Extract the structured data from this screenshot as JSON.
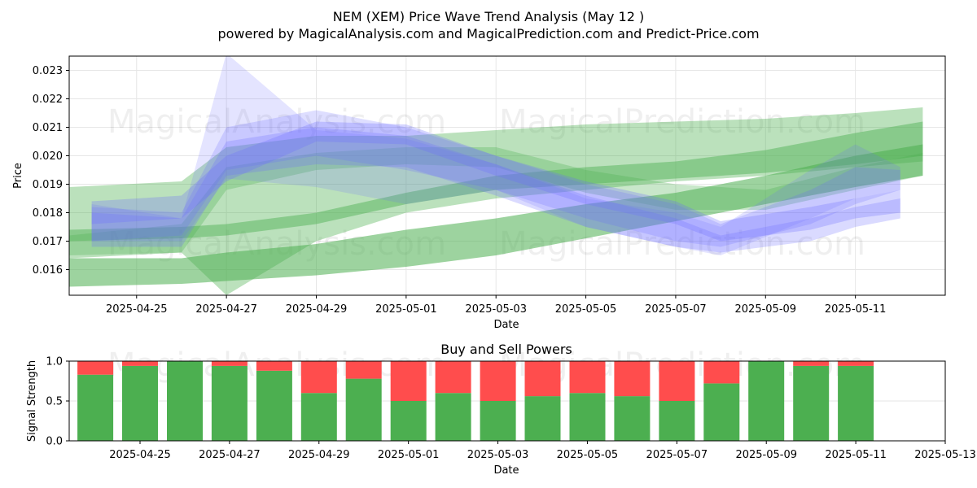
{
  "title": "NEM (XEM) Price Wave Trend Analysis (May 12 )",
  "subtitle": "powered by MagicalAnalysis.com and MagicalPrediction.com and Predict-Price.com",
  "watermarks": [
    "MagicalAnalysis.com",
    "MagicalPrediction.com"
  ],
  "colors": {
    "buy": "#4caf50",
    "sell": "#ff4d4d",
    "blue_band": "#6b6bff",
    "green_band": "#4caf50",
    "grid": "#e6e6e6"
  },
  "chart_data": [
    {
      "type": "area",
      "name": "price-wave",
      "xlabel": "Date",
      "ylabel": "Price",
      "x_range": [
        "2025-04-23T12:00",
        "2025-05-13T00:00"
      ],
      "ylim": [
        0.0151,
        0.0235
      ],
      "x_ticks": [
        "2025-04-25",
        "2025-04-27",
        "2025-04-29",
        "2025-05-01",
        "2025-05-03",
        "2025-05-05",
        "2025-05-07",
        "2025-05-09",
        "2025-05-11"
      ],
      "y_ticks": [
        "0.016",
        "0.017",
        "0.018",
        "0.019",
        "0.020",
        "0.021",
        "0.022",
        "0.023"
      ],
      "blue_bands": [
        {
          "alpha": 0.18,
          "x": [
            "2025-04-24",
            "2025-04-26",
            "2025-04-27",
            "2025-04-29",
            "2025-05-01",
            "2025-05-03",
            "2025-05-05",
            "2025-05-07",
            "2025-05-08",
            "2025-05-10",
            "2025-05-11",
            "2025-05-12"
          ],
          "upper": [
            0.0183,
            0.0178,
            0.0236,
            0.0209,
            0.0206,
            0.0197,
            0.0185,
            0.018,
            0.0175,
            0.0195,
            0.0204,
            0.0196
          ],
          "lower": [
            0.017,
            0.017,
            0.0192,
            0.0189,
            0.0183,
            0.0188,
            0.0175,
            0.0168,
            0.0165,
            0.0178,
            0.0185,
            0.0188
          ]
        },
        {
          "alpha": 0.22,
          "x": [
            "2025-04-24",
            "2025-04-26",
            "2025-04-27",
            "2025-04-29",
            "2025-05-01",
            "2025-05-03",
            "2025-05-05",
            "2025-05-07",
            "2025-05-08",
            "2025-05-10",
            "2025-05-11",
            "2025-05-12"
          ],
          "upper": [
            0.0182,
            0.018,
            0.021,
            0.0216,
            0.021,
            0.02,
            0.019,
            0.0183,
            0.0176,
            0.0188,
            0.0196,
            0.0195
          ],
          "lower": [
            0.017,
            0.0172,
            0.0195,
            0.02,
            0.0195,
            0.0188,
            0.0178,
            0.017,
            0.0168,
            0.0176,
            0.0183,
            0.0188
          ]
        },
        {
          "alpha": 0.28,
          "x": [
            "2025-04-24",
            "2025-04-26",
            "2025-04-27",
            "2025-04-29",
            "2025-05-01",
            "2025-05-03",
            "2025-05-05",
            "2025-05-07",
            "2025-05-08",
            "2025-05-10",
            "2025-05-11",
            "2025-05-12"
          ],
          "upper": [
            0.0184,
            0.0186,
            0.02,
            0.0212,
            0.0211,
            0.02,
            0.0191,
            0.0184,
            0.0177,
            0.0182,
            0.0185,
            0.0188
          ],
          "lower": [
            0.0176,
            0.0178,
            0.0191,
            0.0205,
            0.0204,
            0.0193,
            0.0183,
            0.0176,
            0.017,
            0.0174,
            0.0178,
            0.018
          ]
        },
        {
          "alpha": 0.25,
          "x": [
            "2025-04-24",
            "2025-04-26",
            "2025-04-27",
            "2025-04-29",
            "2025-05-01",
            "2025-05-03",
            "2025-05-05",
            "2025-05-07",
            "2025-05-08",
            "2025-05-10",
            "2025-05-11",
            "2025-05-12"
          ],
          "upper": [
            0.018,
            0.0178,
            0.0205,
            0.021,
            0.0207,
            0.0197,
            0.0186,
            0.0178,
            0.0172,
            0.0178,
            0.0182,
            0.0185
          ],
          "lower": [
            0.0168,
            0.0168,
            0.0193,
            0.0197,
            0.0196,
            0.0186,
            0.0175,
            0.0168,
            0.0166,
            0.017,
            0.0175,
            0.0178
          ]
        }
      ],
      "green_bands": [
        {
          "alpha": 0.38,
          "x": [
            "2025-04-23T12:00",
            "2025-04-26",
            "2025-04-27",
            "2025-04-29",
            "2025-05-01",
            "2025-05-03",
            "2025-05-05",
            "2025-05-07",
            "2025-05-09",
            "2025-05-11",
            "2025-05-12T12:00"
          ],
          "upper": [
            0.0189,
            0.0191,
            0.0203,
            0.0207,
            0.0207,
            0.0209,
            0.0211,
            0.0212,
            0.0213,
            0.0215,
            0.0217
          ],
          "lower": [
            0.0164,
            0.0166,
            0.0151,
            0.017,
            0.018,
            0.0185,
            0.0188,
            0.0191,
            0.0193,
            0.0196,
            0.0198
          ]
        },
        {
          "alpha": 0.45,
          "x": [
            "2025-04-23T12:00",
            "2025-04-26",
            "2025-04-27",
            "2025-04-29",
            "2025-05-01",
            "2025-05-03",
            "2025-05-05",
            "2025-05-07",
            "2025-05-09",
            "2025-05-11",
            "2025-05-12T12:00"
          ],
          "upper": [
            0.0174,
            0.0175,
            0.0176,
            0.018,
            0.0187,
            0.0193,
            0.0196,
            0.0198,
            0.0202,
            0.0208,
            0.0212
          ],
          "lower": [
            0.017,
            0.0171,
            0.0172,
            0.0176,
            0.0183,
            0.0188,
            0.019,
            0.0192,
            0.0194,
            0.0197,
            0.02
          ]
        },
        {
          "alpha": 0.55,
          "x": [
            "2025-04-23T12:00",
            "2025-04-26",
            "2025-04-27",
            "2025-04-29",
            "2025-05-01",
            "2025-05-03",
            "2025-05-05",
            "2025-05-07",
            "2025-05-09",
            "2025-05-11",
            "2025-05-12T12:00"
          ],
          "upper": [
            0.0164,
            0.0164,
            0.0166,
            0.0169,
            0.0174,
            0.0178,
            0.0183,
            0.0187,
            0.0193,
            0.02,
            0.0204
          ],
          "lower": [
            0.0154,
            0.0155,
            0.0156,
            0.0158,
            0.0161,
            0.0165,
            0.0171,
            0.0177,
            0.0183,
            0.0189,
            0.0193
          ]
        },
        {
          "alpha": 0.3,
          "x": [
            "2025-04-23T12:00",
            "2025-04-26",
            "2025-04-27",
            "2025-04-29",
            "2025-05-01",
            "2025-05-03",
            "2025-05-05",
            "2025-05-07",
            "2025-05-09",
            "2025-05-11",
            "2025-05-12T12:00"
          ],
          "upper": [
            0.0172,
            0.0176,
            0.0196,
            0.0201,
            0.0203,
            0.0203,
            0.0195,
            0.019,
            0.0188,
            0.0196,
            0.0201
          ],
          "lower": [
            0.0165,
            0.0166,
            0.0188,
            0.0195,
            0.0197,
            0.0196,
            0.0187,
            0.0181,
            0.0181,
            0.0188,
            0.0193
          ]
        }
      ]
    },
    {
      "type": "bar",
      "name": "buy-sell-powers",
      "title": "Buy and Sell Powers",
      "xlabel": "Date",
      "ylabel": "Signal Strength",
      "x_range": [
        "2025-04-23T10:00",
        "2025-05-13T00:00"
      ],
      "ylim": [
        0.0,
        1.0
      ],
      "x_ticks": [
        "2025-04-25",
        "2025-04-27",
        "2025-04-29",
        "2025-05-01",
        "2025-05-03",
        "2025-05-05",
        "2025-05-07",
        "2025-05-09",
        "2025-05-11",
        "2025-05-13"
      ],
      "y_ticks": [
        "0.0",
        "0.5",
        "1.0"
      ],
      "categories": [
        "2025-04-24",
        "2025-04-25",
        "2025-04-26",
        "2025-04-27",
        "2025-04-28",
        "2025-04-29",
        "2025-04-30",
        "2025-05-01",
        "2025-05-02",
        "2025-05-03",
        "2025-05-04",
        "2025-05-05",
        "2025-05-06",
        "2025-05-07",
        "2025-05-08",
        "2025-05-09",
        "2025-05-10",
        "2025-05-11"
      ],
      "series": [
        {
          "name": "Buy",
          "values": [
            0.83,
            0.94,
            1.0,
            0.94,
            0.88,
            0.6,
            0.78,
            0.5,
            0.6,
            0.5,
            0.56,
            0.6,
            0.56,
            0.5,
            0.72,
            1.0,
            0.94,
            0.94
          ]
        },
        {
          "name": "Sell",
          "values": [
            0.17,
            0.06,
            0.0,
            0.06,
            0.12,
            0.4,
            0.22,
            0.5,
            0.4,
            0.5,
            0.44,
            0.4,
            0.44,
            0.5,
            0.28,
            0.0,
            0.06,
            0.06
          ]
        }
      ]
    }
  ]
}
